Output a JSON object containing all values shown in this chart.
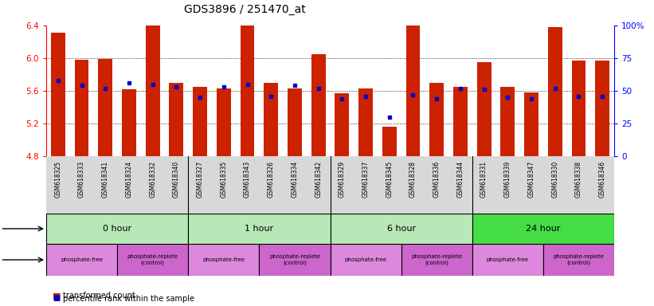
{
  "title": "GDS3896 / 251470_at",
  "samples": [
    "GSM618325",
    "GSM618333",
    "GSM618341",
    "GSM618324",
    "GSM618332",
    "GSM618340",
    "GSM618327",
    "GSM618335",
    "GSM618343",
    "GSM618326",
    "GSM618334",
    "GSM618342",
    "GSM618329",
    "GSM618337",
    "GSM618345",
    "GSM618328",
    "GSM618336",
    "GSM618344",
    "GSM618331",
    "GSM618339",
    "GSM618347",
    "GSM618330",
    "GSM618338",
    "GSM618346"
  ],
  "transformed_count": [
    6.31,
    5.98,
    5.99,
    5.62,
    6.45,
    5.7,
    5.65,
    5.63,
    6.45,
    5.7,
    5.63,
    6.05,
    5.57,
    5.63,
    5.16,
    6.43,
    5.7,
    5.65,
    5.95,
    5.65,
    5.58,
    6.38,
    5.97,
    5.97
  ],
  "percentile_rank": [
    58,
    54,
    52,
    56,
    55,
    53,
    45,
    53,
    55,
    46,
    54,
    52,
    44,
    46,
    30,
    47,
    44,
    52,
    51,
    45,
    44,
    52,
    46,
    46
  ],
  "ymin": 4.8,
  "ymax": 6.4,
  "yticks": [
    4.8,
    5.2,
    5.6,
    6.0,
    6.4
  ],
  "y2ticks": [
    0,
    25,
    50,
    75,
    100
  ],
  "bar_color": "#cc2200",
  "marker_color": "#0000cc",
  "time_groups": [
    {
      "label": "0 hour",
      "start": 0,
      "end": 6
    },
    {
      "label": "1 hour",
      "start": 6,
      "end": 12
    },
    {
      "label": "6 hour",
      "start": 12,
      "end": 18
    },
    {
      "label": "24 hour",
      "start": 18,
      "end": 24
    }
  ],
  "time_colors": [
    "#b8e8b8",
    "#b8e8b8",
    "#b8e8b8",
    "#44dd44"
  ],
  "protocol_groups": [
    {
      "label": "phosphate-free",
      "start": 0,
      "end": 3
    },
    {
      "label": "phosphate-replete\n(control)",
      "start": 3,
      "end": 6
    },
    {
      "label": "phosphate-free",
      "start": 6,
      "end": 9
    },
    {
      "label": "phosphate-replete\n(control)",
      "start": 9,
      "end": 12
    },
    {
      "label": "phosphate-free",
      "start": 12,
      "end": 15
    },
    {
      "label": "phosphate-replete\n(control)",
      "start": 15,
      "end": 18
    },
    {
      "label": "phosphate-free",
      "start": 18,
      "end": 21
    },
    {
      "label": "phosphate-replete\n(control)",
      "start": 21,
      "end": 24
    }
  ],
  "protocol_colors": [
    "#dd88dd",
    "#cc66cc",
    "#dd88dd",
    "#cc66cc",
    "#dd88dd",
    "#cc66cc",
    "#dd88dd",
    "#cc66cc"
  ]
}
